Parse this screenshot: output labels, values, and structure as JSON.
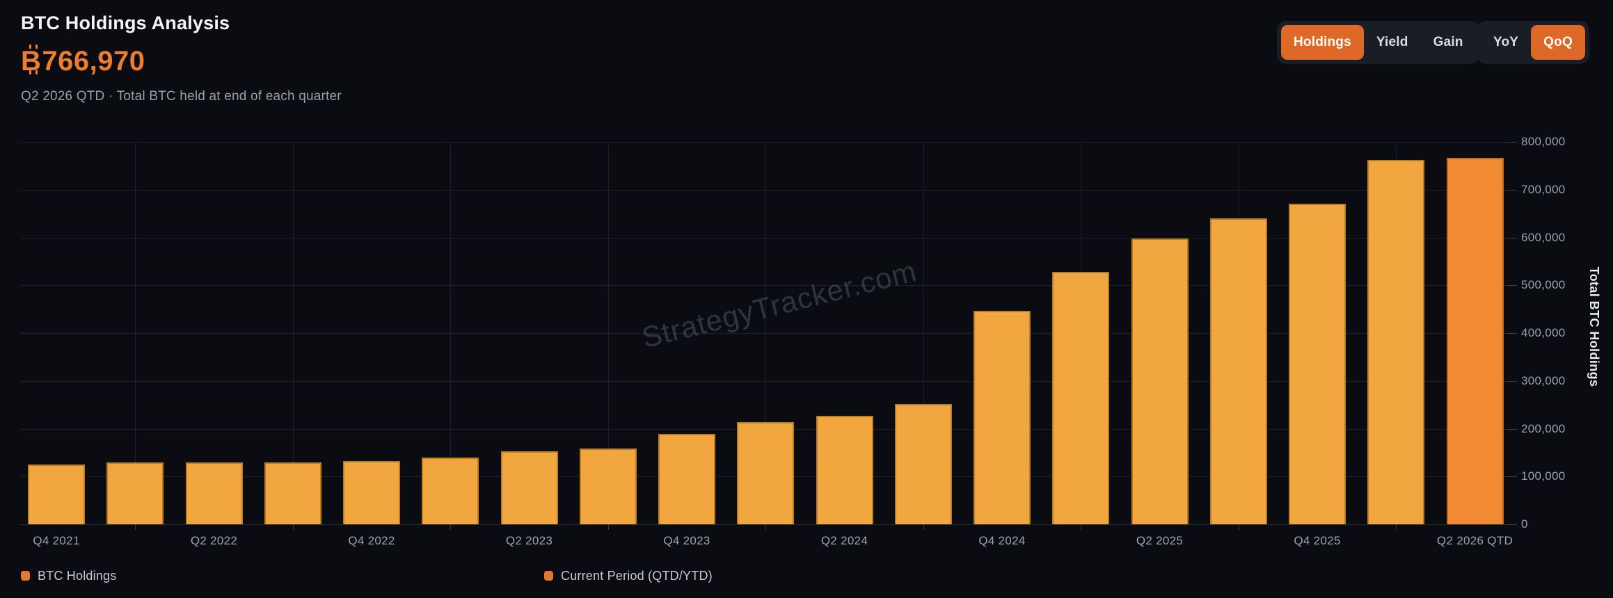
{
  "header": {
    "title": "BTC Holdings Analysis",
    "value": "₿766,970",
    "value_display": {
      "symbol_letter": "B",
      "amount": "766,970"
    },
    "subtitle": "Q2 2026 QTD · Total BTC held at end of each quarter"
  },
  "toggles": {
    "metric": {
      "options": [
        "Holdings",
        "Yield",
        "Gain"
      ],
      "active": "Holdings"
    },
    "period": {
      "options": [
        "YoY",
        "QoQ"
      ],
      "active": "QoQ"
    }
  },
  "watermark": "StrategyTracker.com",
  "legend": [
    {
      "label": "BTC Holdings",
      "color": "#e8772e"
    },
    {
      "label": "Current Period (QTD/YTD)",
      "color": "#e8772e"
    }
  ],
  "colors": {
    "background": "#0a0c11",
    "accent_orange": "#dd6827",
    "value_orange": "#ed7d2f",
    "bar_normal": "#f2a640",
    "bar_current": "#f08b33",
    "gridline": "#1c2027",
    "tick_text": "#9aa1ac"
  },
  "chart_data": {
    "type": "bar",
    "title": "BTC Holdings Analysis",
    "categories": [
      "Q4 2021",
      "Q1 2022",
      "Q2 2022",
      "Q3 2022",
      "Q4 2022",
      "Q1 2023",
      "Q2 2023",
      "Q3 2023",
      "Q4 2023",
      "Q1 2024",
      "Q2 2024",
      "Q3 2024",
      "Q4 2024",
      "Q1 2025",
      "Q2 2025",
      "Q3 2025",
      "Q4 2025",
      "Q1 2026",
      "Q2 2026 QTD"
    ],
    "values": [
      124391,
      129218,
      129699,
      130000,
      132500,
      140000,
      152333,
      158245,
      189150,
      214246,
      226331,
      252220,
      446400,
      528185,
      597325,
      640031,
      671000,
      762000,
      766970
    ],
    "current_period_index": 18,
    "x_tick_labels": [
      "Q4 2021",
      "Q2 2022",
      "Q4 2022",
      "Q2 2023",
      "Q4 2023",
      "Q2 2024",
      "Q4 2024",
      "Q2 2025",
      "Q4 2025",
      "Q2 2026 QTD"
    ],
    "xlabel": "",
    "ylabel": "Total BTC Holdings",
    "ylim": [
      0,
      800000
    ],
    "y_ticks": [
      0,
      100000,
      200000,
      300000,
      400000,
      500000,
      600000,
      700000,
      800000
    ],
    "grid": true,
    "legend_position": "bottom",
    "series_name": "BTC Holdings",
    "current_series_name": "Current Period (QTD/YTD)"
  }
}
